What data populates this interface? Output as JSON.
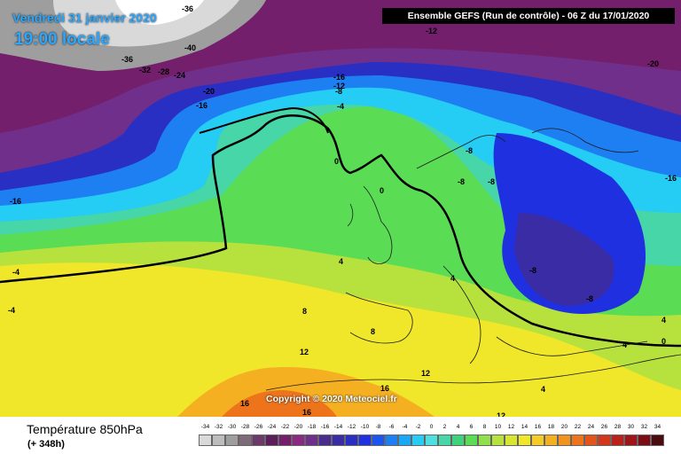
{
  "header": {
    "date": "Vendredi 31 janvier 2020",
    "time": "19:00 locale",
    "run": "Ensemble GEFS  (Run de contrôle)  -  06 Z du 17/01/2020"
  },
  "copyright": "Copyright © 2020 Meteociel.fr",
  "footer": {
    "title": "Température 850hPa",
    "subtitle": "(+ 348h)"
  },
  "legend": {
    "ticks": [
      "-34",
      "-32",
      "-30",
      "-28",
      "-26",
      "-24",
      "-22",
      "-20",
      "-18",
      "-16",
      "-14",
      "-12",
      "-10",
      "-8",
      "-6",
      "-4",
      "-2",
      "0",
      "2",
      "4",
      "6",
      "8",
      "10",
      "12",
      "14",
      "16",
      "18",
      "20",
      "22",
      "24",
      "26",
      "28",
      "30",
      "32",
      "34"
    ],
    "colors": [
      "#d9d9d9",
      "#bdbdbd",
      "#9e9e9e",
      "#7d6b7a",
      "#6b3a6a",
      "#5a1f5a",
      "#741f6b",
      "#8a2a82",
      "#6f2f8a",
      "#4a2c8f",
      "#3a2ca5",
      "#2a2fc4",
      "#1f30e0",
      "#1a55f0",
      "#1d7ff2",
      "#19a8f5",
      "#25ccf4",
      "#4ee0e0",
      "#46d6a8",
      "#3ed27c",
      "#5adc55",
      "#8fe04a",
      "#b7e23d",
      "#d8e630",
      "#f0e62a",
      "#f5cc27",
      "#f5b022",
      "#f3931f",
      "#ee741c",
      "#e3531a",
      "#d3361a",
      "#bc201a",
      "#9e1419",
      "#7b0d15",
      "#4a0a0e"
    ]
  },
  "map_labels": [
    "-36",
    "-40",
    "-36",
    "-32",
    "-28",
    "-24",
    "-20",
    "-16",
    "-12",
    "-16",
    "-12",
    "-8",
    "-4",
    "0",
    "0",
    "-20",
    "-8",
    "-8",
    "-8",
    "-16",
    "-16",
    "-4",
    "-4",
    "4",
    "4",
    "-8",
    "-8",
    "8",
    "8",
    "12",
    "4",
    "4",
    "0",
    "12",
    "16",
    "16",
    "16",
    "4",
    "12"
  ]
}
